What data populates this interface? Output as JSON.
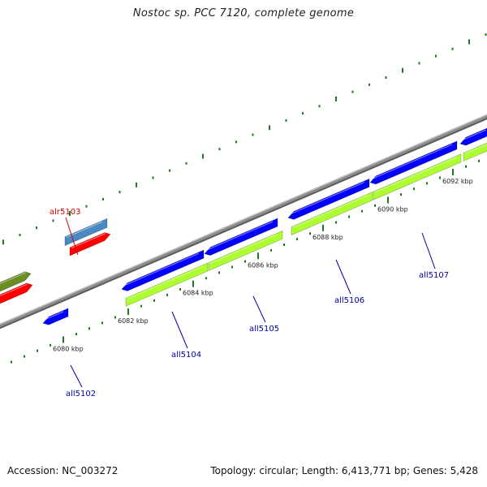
{
  "title": "Nostoc sp. PCC 7120, complete genome",
  "footer": {
    "accession": "Accession: NC_003272",
    "summary": "Topology: circular; Length: 6,413,771 bp; Genes: 5,428"
  },
  "colors": {
    "backbone": "#8c8c8c",
    "tick": "#1f7a1f",
    "forward_cds": "#4a88c2",
    "forward_rna": "#ff0000",
    "forward_other": "#6b8e23",
    "reverse_cds": "#0000ff",
    "reverse_rna": "#adff2f",
    "forward_label": "#cc0000",
    "reverse_label": "#0000aa"
  },
  "ticks": [
    {
      "label": "6080 kbp"
    },
    {
      "label": "6082 kbp"
    },
    {
      "label": "6084 kbp"
    },
    {
      "label": "6086 kbp"
    },
    {
      "label": "6088 kbp"
    },
    {
      "label": "6090 kbp"
    },
    {
      "label": "6092 kbp"
    }
  ],
  "genes": [
    {
      "name": "alr5103",
      "strand": "forward"
    },
    {
      "name": "all5102",
      "strand": "reverse"
    },
    {
      "name": "all5104",
      "strand": "reverse"
    },
    {
      "name": "all5105",
      "strand": "reverse"
    },
    {
      "name": "all5106",
      "strand": "reverse"
    },
    {
      "name": "all5107",
      "strand": "reverse"
    }
  ]
}
